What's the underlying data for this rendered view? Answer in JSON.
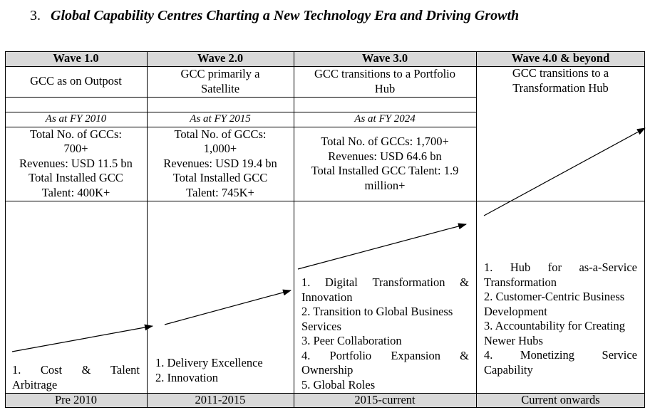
{
  "heading": {
    "number": "3.",
    "title": "Global Capability Centres Charting a New Technology Era and Driving Growth"
  },
  "waves": [
    {
      "header": "Wave 1.0",
      "description": [
        "GCC as on Outpost"
      ],
      "as_at": "As at FY 2010",
      "stats": [
        "Total No. of GCCs:",
        "700+",
        "Revenues: USD 11.5 bn",
        "Total Installed GCC",
        "Talent: 400K+"
      ],
      "focus": [
        [
          "1.",
          "Cost",
          "&",
          "Talent"
        ],
        [
          "Arbitrage"
        ]
      ],
      "period": "Pre 2010"
    },
    {
      "header": "Wave 2.0",
      "description": [
        "GCC primarily a",
        "Satellite"
      ],
      "as_at": "As at FY 2015",
      "stats": [
        "Total No. of GCCs:",
        "1,000+",
        "Revenues: USD 19.4 bn",
        "Total Installed GCC",
        "Talent: 745K+"
      ],
      "focus": [
        [
          "1. Delivery Excellence"
        ],
        [
          "2. Innovation"
        ]
      ],
      "period": "2011-2015"
    },
    {
      "header": "Wave 3.0",
      "description": [
        "GCC transitions to a Portfolio",
        "Hub"
      ],
      "as_at": "As at FY 2024",
      "stats": [
        "Total No. of GCCs: 1,700+",
        "Revenues: USD 64.6 bn",
        "Total Installed GCC Talent: 1.9",
        "million+"
      ],
      "focus": [
        [
          "1.",
          "Digital",
          "Transformation",
          "&"
        ],
        [
          "Innovation"
        ],
        [
          "2. Transition to Global Business"
        ],
        [
          "Services"
        ],
        [
          "3. Peer Collaboration"
        ],
        [
          "4.",
          "Portfolio",
          "Expansion",
          "&"
        ],
        [
          "Ownership"
        ],
        [
          "5. Global Roles"
        ]
      ],
      "period": "2015-current"
    },
    {
      "header": "Wave 4.0 & beyond",
      "description": [
        "GCC transitions to a",
        "Transformation Hub"
      ],
      "focus": [
        [
          "1.",
          "Hub",
          "for",
          "as-a-Service"
        ],
        [
          "Transformation"
        ],
        [
          "2. Customer-Centric Business"
        ],
        [
          "Development"
        ],
        [
          "3. Accountability for Creating"
        ],
        [
          "Newer Hubs"
        ],
        [
          "4.",
          "Monetizing",
          "Service"
        ],
        [
          "Capability"
        ]
      ],
      "period": "Current onwards"
    }
  ],
  "colors": {
    "header_bg": "#d9d9d9",
    "border": "#000000"
  }
}
